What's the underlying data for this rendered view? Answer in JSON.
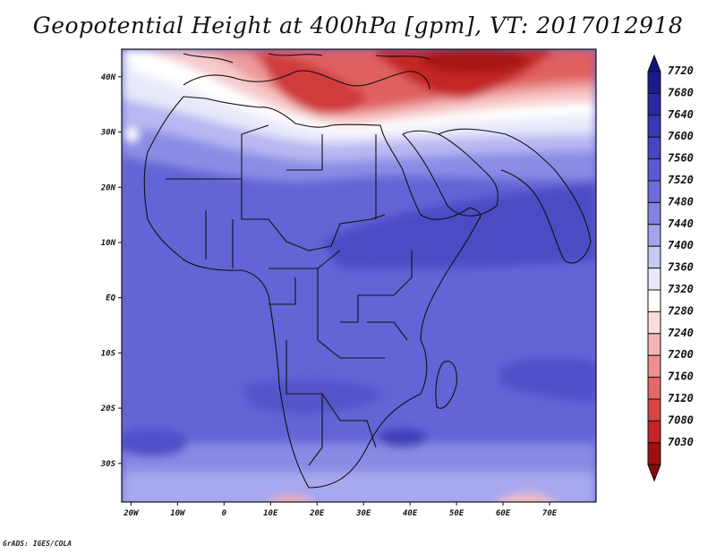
{
  "header": {
    "title": "Geopotential Height at 400hPa [gpm], VT: 2017012918"
  },
  "footer": {
    "credit": "GrADS: IGES/COLA"
  },
  "map": {
    "extent": {
      "lon_min": -22,
      "lon_max": 80,
      "lat_min": -37,
      "lat_max": 45
    },
    "x_ticks": [
      {
        "lon": -20,
        "label": "20W"
      },
      {
        "lon": -10,
        "label": "10W"
      },
      {
        "lon": 0,
        "label": "0"
      },
      {
        "lon": 10,
        "label": "10E"
      },
      {
        "lon": 20,
        "label": "20E"
      },
      {
        "lon": 30,
        "label": "30E"
      },
      {
        "lon": 40,
        "label": "40E"
      },
      {
        "lon": 50,
        "label": "50E"
      },
      {
        "lon": 60,
        "label": "60E"
      },
      {
        "lon": 70,
        "label": "70E"
      }
    ],
    "y_ticks": [
      {
        "lat": 40,
        "label": "40N"
      },
      {
        "lat": 30,
        "label": "30N"
      },
      {
        "lat": 20,
        "label": "20N"
      },
      {
        "lat": 10,
        "label": "10N"
      },
      {
        "lat": 0,
        "label": "EQ"
      },
      {
        "lat": -10,
        "label": "10S"
      },
      {
        "lat": -20,
        "label": "20S"
      },
      {
        "lat": -30,
        "label": "30S"
      }
    ],
    "colorbar": {
      "labels": [
        "7720",
        "7680",
        "7640",
        "7600",
        "7560",
        "7520",
        "7480",
        "7440",
        "7400",
        "7360",
        "7320",
        "7280",
        "7240",
        "7200",
        "7160",
        "7120",
        "7080",
        "7030"
      ],
      "colors": [
        "#1c1c8f",
        "#2a2aa6",
        "#3838b8",
        "#4646c4",
        "#5a5ad2",
        "#6c6cdc",
        "#8484e4",
        "#a4a4ec",
        "#c8c8f4",
        "#e8e8fa",
        "#ffffff",
        "#fadcdc",
        "#f5b4b4",
        "#ee8e8e",
        "#e46868",
        "#d84444",
        "#c42626",
        "#a01010"
      ]
    }
  }
}
